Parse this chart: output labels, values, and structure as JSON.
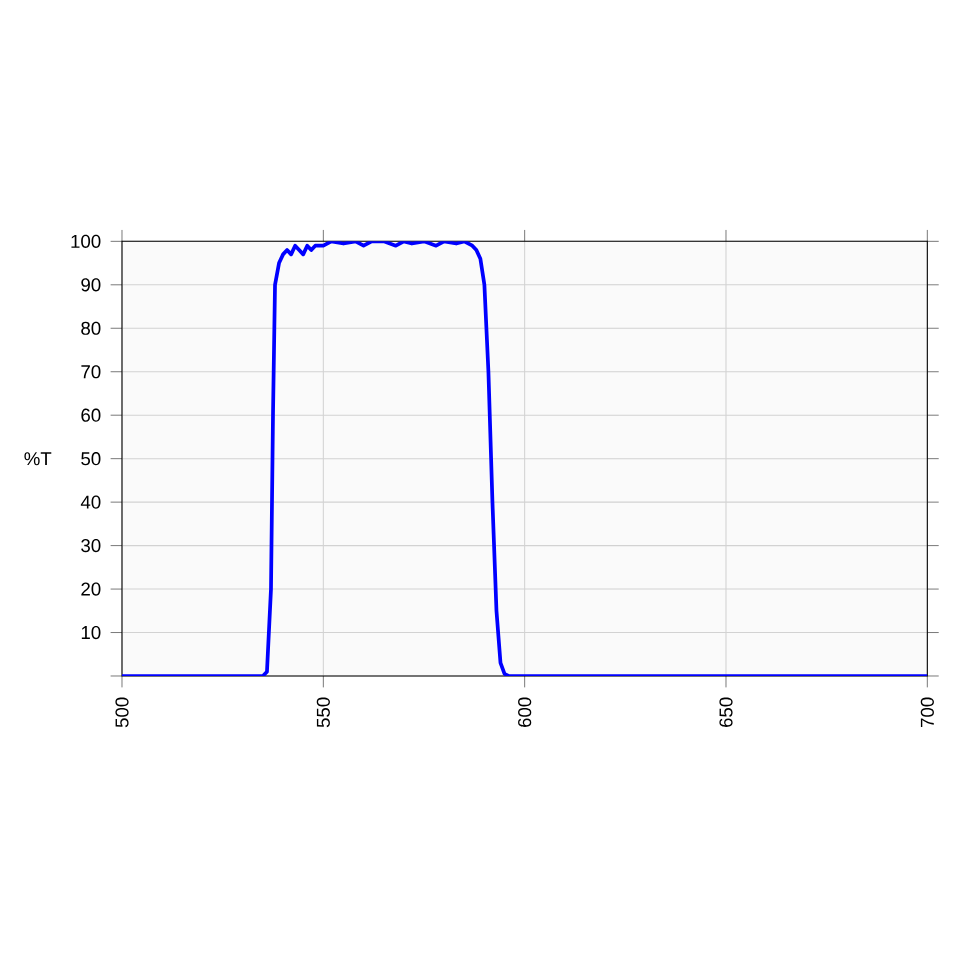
{
  "chart_data": {
    "type": "line",
    "ylabel": "%T",
    "series": [
      {
        "color": "#0000ff",
        "x": [
          500,
          535,
          536,
          537,
          537.5,
          538,
          539,
          540,
          541,
          542,
          543,
          544,
          545,
          546,
          547,
          548,
          550,
          552,
          555,
          558,
          560,
          562,
          565,
          568,
          570,
          572,
          575,
          578,
          580,
          583,
          585,
          587,
          588,
          589,
          590,
          591,
          592,
          593,
          594,
          595,
          596,
          700
        ],
        "values": [
          0,
          0,
          1,
          20,
          60,
          90,
          95,
          97,
          98,
          97,
          99,
          98,
          97,
          99,
          98,
          99,
          99,
          100,
          99.5,
          100,
          99,
          100,
          100,
          99,
          100,
          99.5,
          100,
          99,
          100,
          99.5,
          100,
          99,
          98,
          96,
          90,
          70,
          40,
          15,
          3,
          0.5,
          0,
          0
        ]
      }
    ],
    "xlim": [
      500,
      700
    ],
    "xticks": [
      500,
      550,
      600,
      650,
      700
    ],
    "ylim": [
      0,
      100
    ],
    "yticks": [
      {
        "value": 0,
        "label": null
      },
      10,
      20,
      30,
      40,
      50,
      60,
      70,
      80,
      90,
      100
    ],
    "grid": true,
    "marker": "none",
    "line_style": "solid"
  }
}
